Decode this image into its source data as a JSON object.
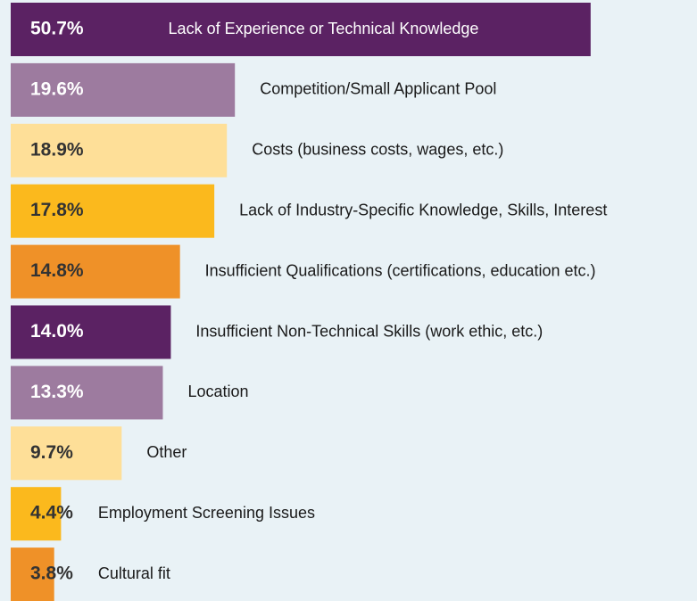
{
  "chart_data": {
    "type": "bar",
    "orientation": "horizontal",
    "categories": [
      "Lack of Experience or Technical Knowledge",
      "Competition/Small Applicant Pool",
      "Costs (business costs, wages, etc.)",
      "Lack of Industry-Specific Knowledge, Skills, Interest",
      "Insufficient Qualifications (certifications, education etc.)",
      "Insufficient Non-Technical Skills (work ethic, etc.)",
      "Location",
      "Other",
      "Employment Screening Issues",
      "Cultural fit"
    ],
    "values": [
      50.7,
      19.6,
      18.9,
      17.8,
      14.8,
      14.0,
      13.3,
      9.7,
      4.4,
      3.8
    ],
    "value_labels": [
      "50.7%",
      "19.6%",
      "18.9%",
      "17.8%",
      "14.8%",
      "14.0%",
      "13.3%",
      "9.7%",
      "4.4%",
      "3.8%"
    ],
    "colors": [
      "#5b2263",
      "#9d7b9f",
      "#fedf98",
      "#fbb91d",
      "#ef9128",
      "#5b2263",
      "#9d7b9f",
      "#fedf98",
      "#fbb91d",
      "#ef9128"
    ],
    "xlim": [
      0,
      60
    ]
  }
}
